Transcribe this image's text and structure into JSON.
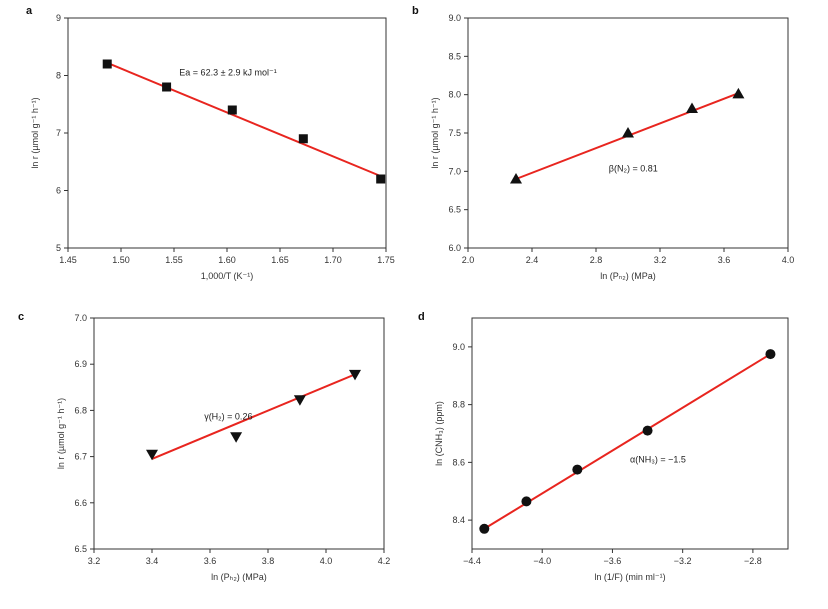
{
  "chart_data": [
    {
      "panel": "a",
      "type": "scatter",
      "xlabel": "1,000/T (K⁻¹)",
      "ylabel": "ln r (µmol g⁻¹ h⁻¹)",
      "xlim": [
        1.45,
        1.75
      ],
      "ylim": [
        5,
        9
      ],
      "xticks": [
        "1.45",
        "1.50",
        "1.55",
        "1.60",
        "1.65",
        "1.70",
        "1.75"
      ],
      "yticks": [
        "5",
        "6",
        "7",
        "8",
        "9"
      ],
      "marker": "square",
      "series": [
        {
          "x": [
            1.487,
            1.543,
            1.605,
            1.672,
            1.745
          ],
          "y": [
            8.2,
            7.8,
            7.4,
            6.9,
            6.2
          ]
        }
      ],
      "fit_line": {
        "x": [
          1.487,
          1.745
        ],
        "y": [
          8.22,
          6.25
        ],
        "color": "#e8251f"
      },
      "annotation": "Ea = 62.3 ± 2.9 kJ mol⁻¹"
    },
    {
      "panel": "b",
      "type": "scatter",
      "xlabel": "ln (Pₙ₂) (MPa)",
      "ylabel": "ln r (µmol g⁻¹ h⁻¹)",
      "xlim": [
        2.0,
        4.0
      ],
      "ylim": [
        6.0,
        9.0
      ],
      "xticks": [
        "2.0",
        "2.4",
        "2.8",
        "3.2",
        "3.6",
        "4.0"
      ],
      "yticks": [
        "6.0",
        "6.5",
        "7.0",
        "7.5",
        "8.0",
        "8.5",
        "9.0"
      ],
      "marker": "triangle-up",
      "series": [
        {
          "x": [
            2.3,
            3.0,
            3.4,
            3.69
          ],
          "y": [
            6.9,
            7.5,
            7.82,
            8.01
          ]
        }
      ],
      "fit_line": {
        "x": [
          2.3,
          3.69
        ],
        "y": [
          6.9,
          8.02
        ],
        "color": "#e8251f"
      },
      "annotation": "β(N₂) = 0.81"
    },
    {
      "panel": "c",
      "type": "scatter",
      "xlabel": "ln (Pₕ₂) (MPa)",
      "ylabel": "ln r (µmol g⁻¹ h⁻¹)",
      "xlim": [
        3.2,
        4.2
      ],
      "ylim": [
        6.5,
        7.0
      ],
      "xticks": [
        "3.2",
        "3.4",
        "3.6",
        "3.8",
        "4.0",
        "4.2"
      ],
      "yticks": [
        "6.5",
        "6.6",
        "6.7",
        "6.8",
        "6.9",
        "7.0"
      ],
      "marker": "triangle-down",
      "series": [
        {
          "x": [
            3.4,
            3.69,
            3.91,
            4.1
          ],
          "y": [
            6.705,
            6.743,
            6.823,
            6.878
          ]
        }
      ],
      "fit_line": {
        "x": [
          3.4,
          4.1
        ],
        "y": [
          6.695,
          6.878
        ],
        "color": "#e8251f"
      },
      "annotation": "γ(H₂) = 0.26"
    },
    {
      "panel": "d",
      "type": "scatter",
      "xlabel": "ln (1/F) (min ml⁻¹)",
      "ylabel": "ln (CNH₃) (ppm)",
      "xlim": [
        -4.4,
        -2.6
      ],
      "ylim": [
        8.3,
        9.1
      ],
      "xticks": [
        "−4.4",
        "−4.0",
        "−3.6",
        "−3.2",
        "−2.8"
      ],
      "yticks": [
        "8.4",
        "8.6",
        "8.8",
        "9.0"
      ],
      "xtick_values": [
        -4.4,
        -4.0,
        -3.6,
        -3.2,
        -2.8
      ],
      "ytick_values": [
        8.4,
        8.6,
        8.8,
        9.0
      ],
      "marker": "circle",
      "series": [
        {
          "x": [
            -4.33,
            -4.09,
            -3.8,
            -3.4,
            -2.7
          ],
          "y": [
            8.37,
            8.465,
            8.575,
            8.71,
            8.975
          ]
        }
      ],
      "fit_line": {
        "x": [
          -4.33,
          -2.7
        ],
        "y": [
          8.37,
          8.975
        ],
        "color": "#e8251f"
      },
      "annotation": "α(NH₃) = −1.5"
    }
  ]
}
